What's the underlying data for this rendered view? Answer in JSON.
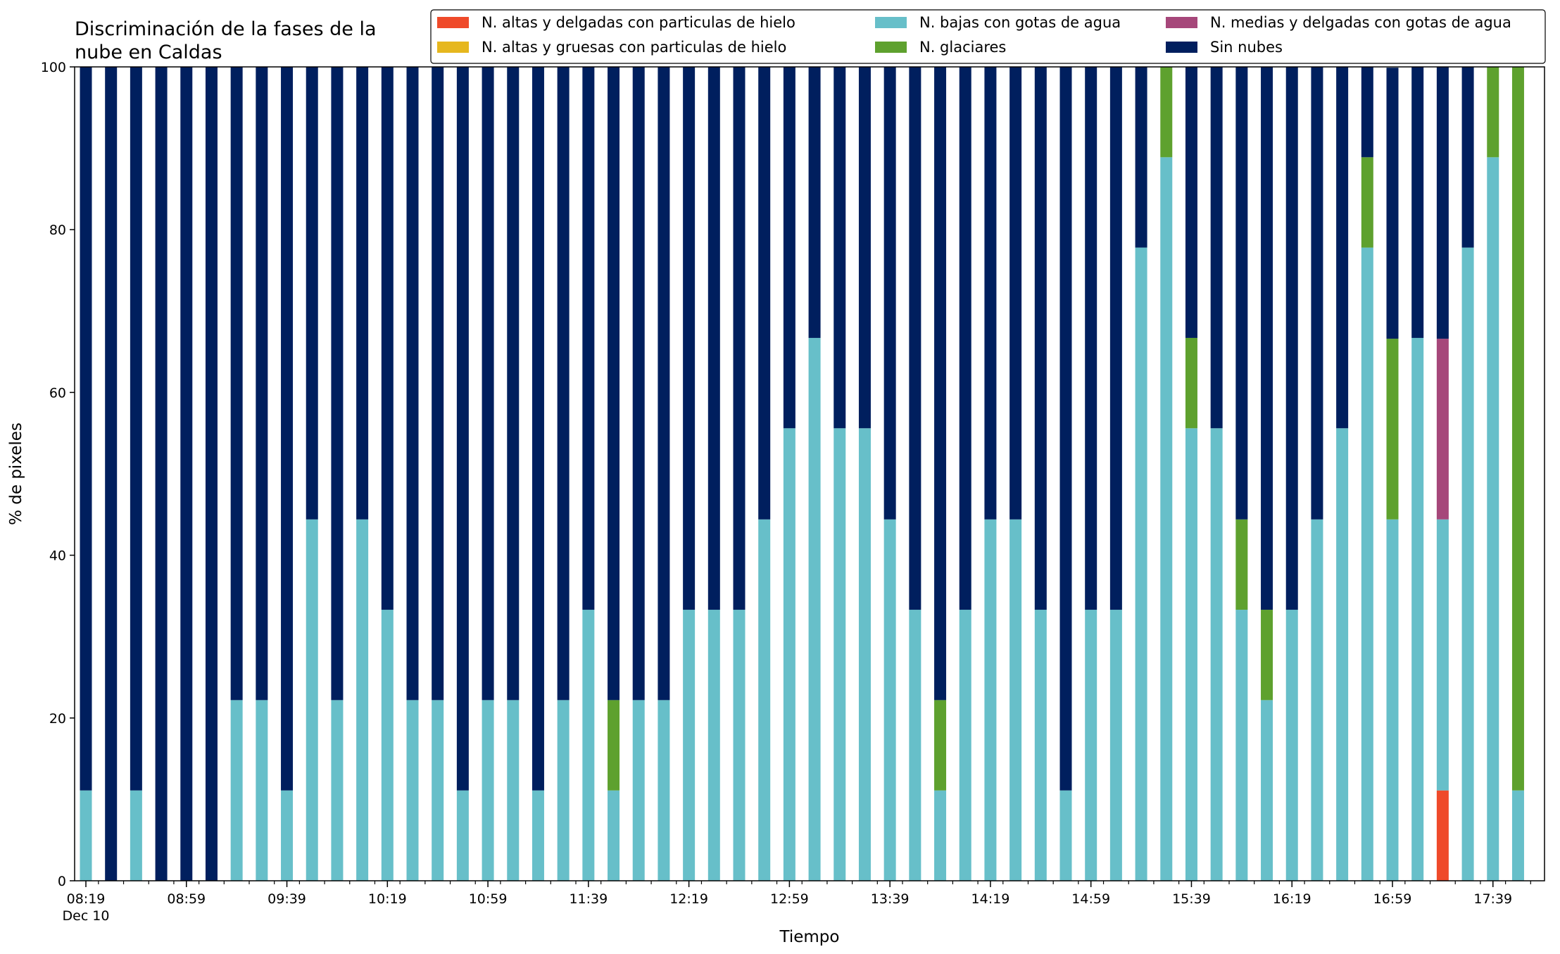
{
  "chart_data": {
    "type": "bar",
    "stacked": true,
    "title_lines": [
      "Discriminación de la fases de la",
      "nube en Caldas"
    ],
    "xlabel": "Tiempo",
    "ylabel": "% de pixeles",
    "ylim": [
      0,
      100
    ],
    "yticks": [
      0,
      20,
      40,
      60,
      80,
      100
    ],
    "grid": false,
    "legend_position": "top-right",
    "legend_columns": 3,
    "xtick_labels": [
      {
        "index": 0,
        "label": "08:19",
        "sublabel": "Dec 10"
      },
      {
        "index": 4,
        "label": "08:59"
      },
      {
        "index": 8,
        "label": "09:39"
      },
      {
        "index": 12,
        "label": "10:19"
      },
      {
        "index": 16,
        "label": "10:59"
      },
      {
        "index": 20,
        "label": "11:39"
      },
      {
        "index": 24,
        "label": "12:19"
      },
      {
        "index": 28,
        "label": "12:59"
      },
      {
        "index": 32,
        "label": "13:39"
      },
      {
        "index": 36,
        "label": "14:19"
      },
      {
        "index": 40,
        "label": "14:59"
      },
      {
        "index": 44,
        "label": "15:39"
      },
      {
        "index": 48,
        "label": "16:19"
      },
      {
        "index": 52,
        "label": "16:59"
      },
      {
        "index": 56,
        "label": "17:39"
      }
    ],
    "bar_count": 58,
    "series": [
      {
        "name": "N. altas y delgadas con particulas de hielo",
        "color": "#ef4a2a",
        "values": [
          0,
          0,
          0,
          0,
          0,
          0,
          0,
          0,
          0,
          0,
          0,
          0,
          0,
          0,
          0,
          0,
          0,
          0,
          0,
          0,
          0,
          0,
          0,
          0,
          0,
          0,
          0,
          0,
          0,
          0,
          0,
          0,
          0,
          0,
          0,
          0,
          0,
          0,
          0,
          0,
          0,
          0,
          0,
          0,
          0,
          0,
          0,
          0,
          0,
          0,
          0,
          0,
          0,
          0,
          11.1,
          0,
          0,
          0
        ]
      },
      {
        "name": "N. altas y gruesas con particulas de hielo",
        "color": "#e6b71e",
        "values": [
          0,
          0,
          0,
          0,
          0,
          0,
          0,
          0,
          0,
          0,
          0,
          0,
          0,
          0,
          0,
          0,
          0,
          0,
          0,
          0,
          0,
          0,
          0,
          0,
          0,
          0,
          0,
          0,
          0,
          0,
          0,
          0,
          0,
          0,
          0,
          0,
          0,
          0,
          0,
          0,
          0,
          0,
          0,
          0,
          0,
          0,
          0,
          0,
          0,
          0,
          0,
          0,
          0,
          0,
          0,
          0,
          0,
          0
        ]
      },
      {
        "name": "N. bajas con gotas de agua",
        "color": "#67bfc9",
        "values": [
          11.1,
          0,
          11.1,
          0,
          0,
          0,
          22.2,
          22.2,
          11.1,
          44.4,
          22.2,
          44.4,
          33.3,
          22.2,
          22.2,
          11.1,
          22.2,
          22.2,
          11.1,
          22.2,
          33.3,
          11.1,
          22.2,
          22.2,
          33.3,
          33.3,
          33.3,
          44.4,
          55.6,
          66.7,
          55.6,
          55.6,
          44.4,
          33.3,
          11.1,
          33.3,
          44.4,
          44.4,
          33.3,
          11.1,
          33.3,
          33.3,
          77.8,
          88.9,
          55.6,
          55.6,
          33.3,
          22.2,
          33.3,
          44.4,
          55.6,
          77.8,
          44.4,
          66.7,
          33.3,
          77.8,
          88.9,
          11.1
        ]
      },
      {
        "name": "N. glaciares",
        "color": "#5ea12e",
        "values": [
          0,
          0,
          0,
          0,
          0,
          0,
          0,
          0,
          0,
          0,
          0,
          0,
          0,
          0,
          0,
          0,
          0,
          0,
          0,
          0,
          0,
          11.1,
          0,
          0,
          0,
          0,
          0,
          0,
          0,
          0,
          0,
          0,
          0,
          0,
          11.1,
          0,
          0,
          0,
          0,
          0,
          0,
          0,
          0,
          11.1,
          11.1,
          0,
          11.1,
          11.1,
          0,
          0,
          0,
          11.1,
          22.2,
          0,
          0,
          0,
          11.1,
          88.9
        ]
      },
      {
        "name": "N. medias y delgadas con gotas de agua",
        "color": "#a6477a",
        "values": [
          0,
          0,
          0,
          0,
          0,
          0,
          0,
          0,
          0,
          0,
          0,
          0,
          0,
          0,
          0,
          0,
          0,
          0,
          0,
          0,
          0,
          0,
          0,
          0,
          0,
          0,
          0,
          0,
          0,
          0,
          0,
          0,
          0,
          0,
          0,
          0,
          0,
          0,
          0,
          0,
          0,
          0,
          0,
          0,
          0,
          0,
          0,
          0,
          0,
          0,
          0,
          0,
          0,
          0,
          22.2,
          0,
          0,
          0
        ]
      },
      {
        "name": "Sin nubes",
        "color": "#001f5e",
        "values": [
          88.9,
          100,
          88.9,
          100,
          100,
          100,
          77.8,
          77.8,
          88.9,
          55.6,
          77.8,
          55.6,
          66.7,
          77.8,
          77.8,
          88.9,
          77.8,
          77.8,
          88.9,
          77.8,
          66.7,
          77.8,
          77.8,
          77.8,
          66.7,
          66.7,
          66.7,
          55.6,
          44.4,
          33.3,
          44.4,
          44.4,
          55.6,
          66.7,
          77.8,
          66.7,
          55.6,
          55.6,
          66.7,
          88.9,
          66.7,
          66.7,
          22.2,
          0,
          33.3,
          44.4,
          55.6,
          66.7,
          66.7,
          55.6,
          44.4,
          11.1,
          33.3,
          33.3,
          33.4,
          22.2,
          0,
          0
        ]
      }
    ]
  }
}
